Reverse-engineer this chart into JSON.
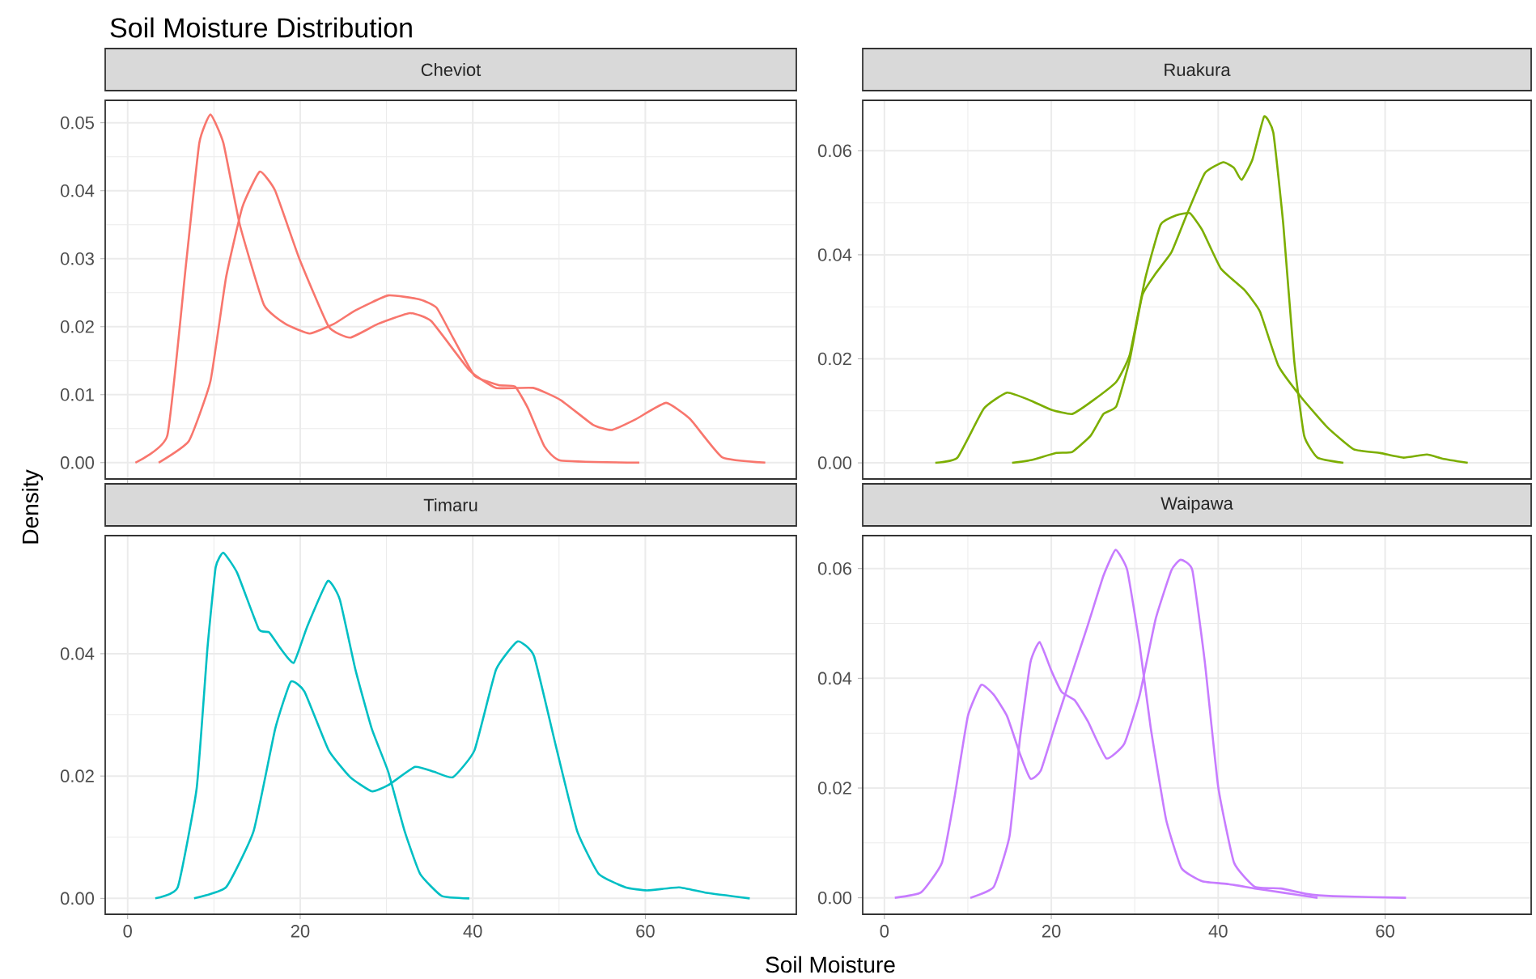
{
  "chart_data": [
    {
      "type": "line",
      "title": "Cheviot",
      "annotations": [
        "Soil Moisture Distribution"
      ],
      "ylabel": "Density",
      "xlim": [
        -2.6,
        77.5
      ],
      "xticks": [
        0,
        20,
        40,
        60
      ],
      "ylim": [
        -0.0024,
        0.0533
      ],
      "yticks": [
        {
          "value": 0,
          "label": "0.00"
        },
        {
          "value": 0.01,
          "label": "0.01"
        },
        {
          "value": 0.02,
          "label": "0.02"
        },
        {
          "value": 0.03,
          "label": "0.03"
        },
        {
          "value": 0.04,
          "label": "0.04"
        },
        {
          "value": 0.05,
          "label": "0.05"
        }
      ],
      "grid": true,
      "tick_labels": "y",
      "series": [
        {
          "color": "#f8766d",
          "x": [
            0.9,
            4.6,
            6.75,
            8.3,
            9.6,
            11.1,
            13,
            15.8,
            18.3,
            21.1,
            23.9,
            26.4,
            30.2,
            33.9,
            35.8,
            37.7,
            40.2,
            43,
            44.9,
            46.4,
            48.3,
            50.2,
            59.3
          ],
          "values": [
            0,
            0.004,
            0.029,
            0.047,
            0.0512,
            0.047,
            0.035,
            0.0232,
            0.0204,
            0.019,
            0.0204,
            0.0224,
            0.0246,
            0.024,
            0.0228,
            0.0184,
            0.0128,
            0.0114,
            0.0112,
            0.008,
            0.0024,
            0.0003,
            0
          ]
        },
        {
          "color": "#f8766d",
          "x": [
            3.6,
            7.1,
            9.6,
            11.4,
            13.3,
            15.3,
            17.1,
            19.9,
            23.3,
            25.8,
            29,
            32.7,
            35.2,
            39.6,
            42.7,
            47,
            50.2,
            53.9,
            56.1,
            58.9,
            62.4,
            65.2,
            68.9,
            73.9
          ],
          "values": [
            0,
            0.0032,
            0.012,
            0.0272,
            0.0376,
            0.0428,
            0.04,
            0.03,
            0.02,
            0.0184,
            0.0204,
            0.022,
            0.0208,
            0.0136,
            0.011,
            0.011,
            0.0092,
            0.0056,
            0.0048,
            0.0064,
            0.0088,
            0.0064,
            0.0008,
            0
          ]
        }
      ]
    },
    {
      "type": "line",
      "title": "Ruakura",
      "xlim": [
        -2.6,
        77.5
      ],
      "xticks": [
        0,
        20,
        40,
        60
      ],
      "ylim": [
        -0.0031,
        0.0697
      ],
      "yticks": [
        {
          "value": 0,
          "label": "0.00"
        },
        {
          "value": 0.02,
          "label": "0.02"
        },
        {
          "value": 0.04,
          "label": "0.04"
        },
        {
          "value": 0.06,
          "label": "0.06"
        }
      ],
      "grid": true,
      "tick_labels": "y",
      "series": [
        {
          "color": "#7cae00",
          "x": [
            6.1,
            8.75,
            11.9,
            14.7,
            17.5,
            20,
            22.5,
            25,
            27.8,
            29.4,
            31.25,
            33.1,
            35,
            36.6,
            38.1,
            40.3,
            43.1,
            45,
            47.2,
            50,
            53.1,
            56.25,
            59.4,
            62.2,
            65,
            66.9,
            69.9
          ],
          "values": [
            0,
            0.001,
            0.0104,
            0.0135,
            0.012,
            0.0102,
            0.0094,
            0.012,
            0.0156,
            0.0208,
            0.0354,
            0.0458,
            0.0476,
            0.048,
            0.0447,
            0.0374,
            0.0333,
            0.0291,
            0.0187,
            0.0125,
            0.0068,
            0.0026,
            0.0019,
            0.001,
            0.0016,
            0.0008,
            0
          ]
        },
        {
          "color": "#7cae00",
          "x": [
            15.3,
            17.5,
            20.6,
            22.5,
            24.7,
            26.25,
            27.8,
            29.4,
            30.9,
            32.5,
            34.4,
            36.25,
            38.4,
            40.6,
            41.9,
            42.8,
            44.1,
            45.5,
            46.6,
            47.8,
            49.1,
            50.3,
            51.9,
            55
          ],
          "values": [
            0,
            0.0005,
            0.0019,
            0.0021,
            0.0052,
            0.0094,
            0.0109,
            0.0198,
            0.0322,
            0.0364,
            0.0405,
            0.0478,
            0.0557,
            0.0578,
            0.0567,
            0.0544,
            0.0583,
            0.0666,
            0.0635,
            0.0458,
            0.0198,
            0.0052,
            0.001,
            0
          ]
        }
      ]
    },
    {
      "type": "line",
      "title": "Timaru",
      "xlabel": "Soil Moisture",
      "xlim": [
        -2.6,
        77.5
      ],
      "xticks": [
        0,
        20,
        40,
        60
      ],
      "ylim": [
        -0.0026,
        0.0593
      ],
      "yticks": [
        {
          "value": 0,
          "label": "0.00"
        },
        {
          "value": 0.02,
          "label": "0.02"
        },
        {
          "value": 0.04,
          "label": "0.04"
        }
      ],
      "grid": true,
      "series": [
        {
          "color": "#00bfc4",
          "x": [
            3.2,
            5.8,
            8,
            9.25,
            10.2,
            11.1,
            12.7,
            15.2,
            16.4,
            17.7,
            19.25,
            20.8,
            23.2,
            24.6,
            26.4,
            28.3,
            30.2,
            32.1,
            33.9,
            36.4,
            39.6
          ],
          "values": [
            0,
            0.0018,
            0.018,
            0.0409,
            0.0541,
            0.0565,
            0.0532,
            0.044,
            0.0435,
            0.0409,
            0.0385,
            0.0444,
            0.0519,
            0.0488,
            0.0374,
            0.0277,
            0.0207,
            0.011,
            0.004,
            0.0004,
            0
          ]
        },
        {
          "color": "#00bfc4",
          "x": [
            7.7,
            11.4,
            14.6,
            17.1,
            18.9,
            20.5,
            23.3,
            25.8,
            28.3,
            30.2,
            33.3,
            35.5,
            37.7,
            40.2,
            42.7,
            45.2,
            47.1,
            49.6,
            52.1,
            54.6,
            57.7,
            60.2,
            63.9,
            67.1,
            72.1
          ],
          "values": [
            0,
            0.0018,
            0.011,
            0.0277,
            0.0354,
            0.0338,
            0.0242,
            0.0198,
            0.0175,
            0.0185,
            0.0215,
            0.0207,
            0.0198,
            0.0242,
            0.0374,
            0.042,
            0.0396,
            0.0251,
            0.011,
            0.004,
            0.0018,
            0.0013,
            0.0018,
            0.0009,
            0
          ]
        }
      ]
    },
    {
      "type": "line",
      "title": "Waipawa",
      "xlim": [
        -2.6,
        77.5
      ],
      "xticks": [
        0,
        20,
        40,
        60
      ],
      "ylim": [
        -0.003,
        0.066
      ],
      "yticks": [
        {
          "value": 0,
          "label": "0.00"
        },
        {
          "value": 0.02,
          "label": "0.02"
        },
        {
          "value": 0.04,
          "label": "0.04"
        },
        {
          "value": 0.06,
          "label": "0.06"
        }
      ],
      "grid": true,
      "series": [
        {
          "color": "#c77cff",
          "x": [
            1.25,
            4.4,
            6.9,
            8.4,
            10,
            11.6,
            13.1,
            14.7,
            16.25,
            17.5,
            18.75,
            20.6,
            22.5,
            24.4,
            26.25,
            27.7,
            29.1,
            30.6,
            31.9,
            33.75,
            35.6,
            38.1,
            41.25,
            44.4,
            47.5,
            51.9
          ],
          "values": [
            0,
            0.001,
            0.0064,
            0.0183,
            0.0331,
            0.0388,
            0.037,
            0.0331,
            0.0262,
            0.0217,
            0.0232,
            0.0321,
            0.041,
            0.0498,
            0.0587,
            0.0634,
            0.0597,
            0.0459,
            0.0311,
            0.0143,
            0.0054,
            0.003,
            0.0025,
            0.0017,
            0.001,
            0
          ]
        },
        {
          "color": "#c77cff",
          "x": [
            10.3,
            13.1,
            15,
            16.25,
            17.5,
            18.6,
            20,
            21.25,
            22.8,
            24.4,
            26.6,
            28.75,
            30.6,
            32.5,
            34.4,
            35.5,
            36.9,
            38.4,
            40,
            41.9,
            44.4,
            47.5,
            50.6,
            53.75,
            62.5
          ],
          "values": [
            0,
            0.002,
            0.0113,
            0.0291,
            0.0429,
            0.0466,
            0.0414,
            0.0375,
            0.036,
            0.0321,
            0.0254,
            0.0281,
            0.037,
            0.0508,
            0.0597,
            0.0616,
            0.0597,
            0.0429,
            0.0202,
            0.0064,
            0.002,
            0.0017,
            0.0007,
            0.0003,
            0
          ]
        }
      ]
    }
  ]
}
